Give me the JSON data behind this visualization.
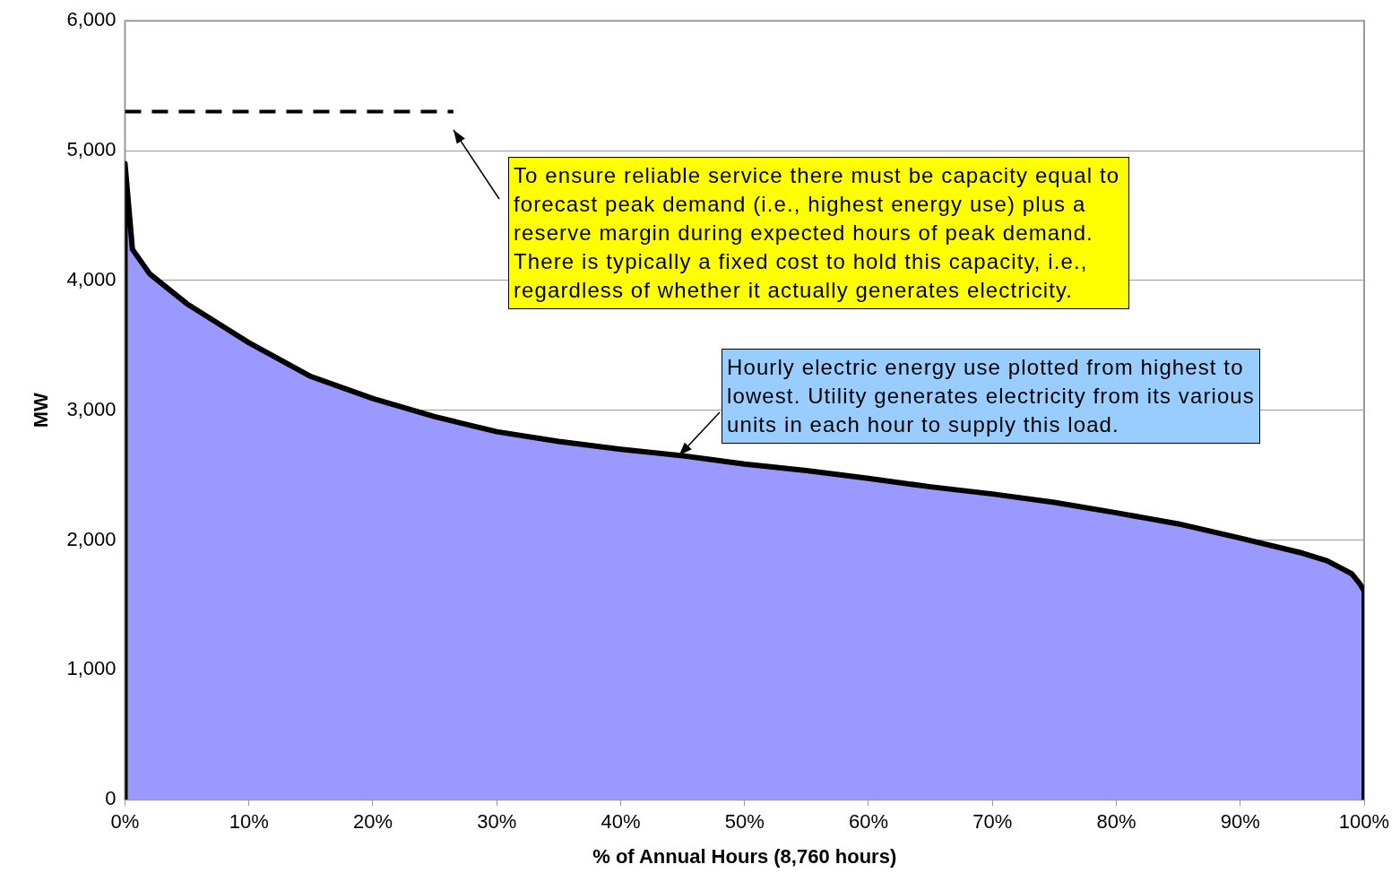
{
  "chart_data": {
    "type": "area",
    "xlabel": "% of Annual Hours (8,760 hours)",
    "ylabel": "MW",
    "xlim": [
      0,
      100
    ],
    "ylim": [
      0,
      6000
    ],
    "xticks": [
      {
        "value": 0,
        "label": "0%"
      },
      {
        "value": 10,
        "label": "10%"
      },
      {
        "value": 20,
        "label": "20%"
      },
      {
        "value": 30,
        "label": "30%"
      },
      {
        "value": 40,
        "label": "40%"
      },
      {
        "value": 50,
        "label": "50%"
      },
      {
        "value": 60,
        "label": "60%"
      },
      {
        "value": 70,
        "label": "70%"
      },
      {
        "value": 80,
        "label": "80%"
      },
      {
        "value": 90,
        "label": "90%"
      },
      {
        "value": 100,
        "label": "100%"
      }
    ],
    "yticks": [
      {
        "value": 0,
        "label": "0"
      },
      {
        "value": 1000,
        "label": "1,000"
      },
      {
        "value": 2000,
        "label": "2,000"
      },
      {
        "value": 3000,
        "label": "3,000"
      },
      {
        "value": 4000,
        "label": "4,000"
      },
      {
        "value": 5000,
        "label": "5,000"
      },
      {
        "value": 6000,
        "label": "6,000"
      }
    ],
    "grid": "y",
    "legend": false,
    "series": [
      {
        "color": "#9999ff",
        "x": [
          0,
          0,
          0.6,
          2,
          5,
          10,
          15,
          20,
          25,
          30,
          35,
          40,
          45,
          50,
          55,
          60,
          65,
          70,
          75,
          80,
          85,
          90,
          95,
          97,
          99,
          99.6,
          100,
          100
        ],
        "values": [
          0,
          4900,
          4240,
          4050,
          3820,
          3520,
          3260,
          3090,
          2950,
          2835,
          2760,
          2700,
          2650,
          2585,
          2535,
          2475,
          2410,
          2355,
          2290,
          2210,
          2125,
          2015,
          1900,
          1840,
          1740,
          1670,
          1610,
          0
        ]
      },
      {
        "type": "line",
        "color": "#000000",
        "line_style": "dashed",
        "x": [
          0,
          26.5
        ],
        "values": [
          5300,
          5300
        ]
      }
    ],
    "annotations": [
      "To ensure reliable service there must be capacity equal to forecast peak demand (i.e., highest energy use) plus a reserve margin during expected hours of peak demand.  There is typically a fixed cost to hold this capacity, i.e., regardless of whether it actually generates electricity.",
      {
        "text": "Hourly electric energy use plotted from highest to lowest.  Utility generates electricity from its various units in each hour to supply this load.",
        "x": 44.7,
        "y": 2650
      }
    ]
  }
}
